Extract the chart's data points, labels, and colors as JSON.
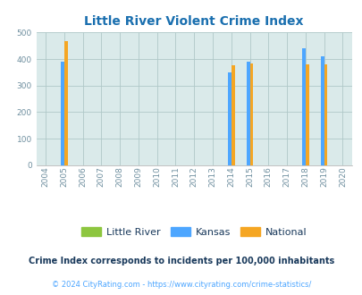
{
  "title": "Little River Violent Crime Index",
  "title_color": "#1a6faf",
  "years": [
    2004,
    2005,
    2006,
    2007,
    2008,
    2009,
    2010,
    2011,
    2012,
    2013,
    2014,
    2015,
    2016,
    2017,
    2018,
    2019,
    2020
  ],
  "little_river": [
    null,
    null,
    null,
    null,
    null,
    null,
    null,
    null,
    null,
    null,
    null,
    null,
    null,
    null,
    null,
    null,
    null
  ],
  "kansas": [
    null,
    390,
    null,
    null,
    null,
    null,
    null,
    null,
    null,
    null,
    349,
    390,
    null,
    null,
    440,
    411,
    null
  ],
  "national": [
    null,
    469,
    null,
    null,
    null,
    null,
    null,
    null,
    null,
    null,
    376,
    384,
    null,
    null,
    379,
    379,
    null
  ],
  "color_little_river": "#8dc63f",
  "color_kansas": "#4da6ff",
  "color_national": "#f5a623",
  "ylim": [
    0,
    500
  ],
  "yticks": [
    0,
    100,
    200,
    300,
    400,
    500
  ],
  "bg_color": "#daeaea",
  "grid_color": "#b0c8c8",
  "legend_labels": [
    "Little River",
    "Kansas",
    "National"
  ],
  "footnote": "Crime Index corresponds to incidents per 100,000 inhabitants",
  "copyright": "© 2024 CityRating.com - https://www.cityrating.com/crime-statistics/",
  "footnote_color": "#1a3a5c",
  "copyright_color": "#4da6ff"
}
